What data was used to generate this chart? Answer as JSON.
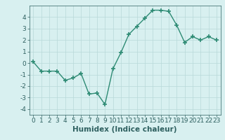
{
  "x": [
    0,
    1,
    2,
    3,
    4,
    5,
    6,
    7,
    8,
    9,
    10,
    11,
    12,
    13,
    14,
    15,
    16,
    17,
    18,
    19,
    20,
    21,
    22,
    23
  ],
  "y": [
    0.1,
    -0.7,
    -0.7,
    -0.7,
    -1.5,
    -1.3,
    -0.9,
    -2.7,
    -2.6,
    -3.6,
    -0.5,
    0.9,
    2.5,
    3.2,
    3.9,
    4.6,
    4.6,
    4.5,
    3.3,
    1.8,
    2.3,
    2.0,
    2.3,
    2.0
  ],
  "line_color": "#2e8b74",
  "marker": "+",
  "marker_size": 4,
  "marker_linewidth": 1.2,
  "xlabel": "Humidex (Indice chaleur)",
  "xlim": [
    -0.5,
    23.5
  ],
  "ylim": [
    -4.5,
    5.0
  ],
  "yticks": [
    -4,
    -3,
    -2,
    -1,
    0,
    1,
    2,
    3,
    4
  ],
  "xticks": [
    0,
    1,
    2,
    3,
    4,
    5,
    6,
    7,
    8,
    9,
    10,
    11,
    12,
    13,
    14,
    15,
    16,
    17,
    18,
    19,
    20,
    21,
    22,
    23
  ],
  "background_color": "#d8f0f0",
  "grid_color": "#b8d8d8",
  "tick_label_fontsize": 6.5,
  "xlabel_fontsize": 7.5,
  "xlabel_fontweight": "bold",
  "line_width": 1.0,
  "text_color": "#2e6060"
}
